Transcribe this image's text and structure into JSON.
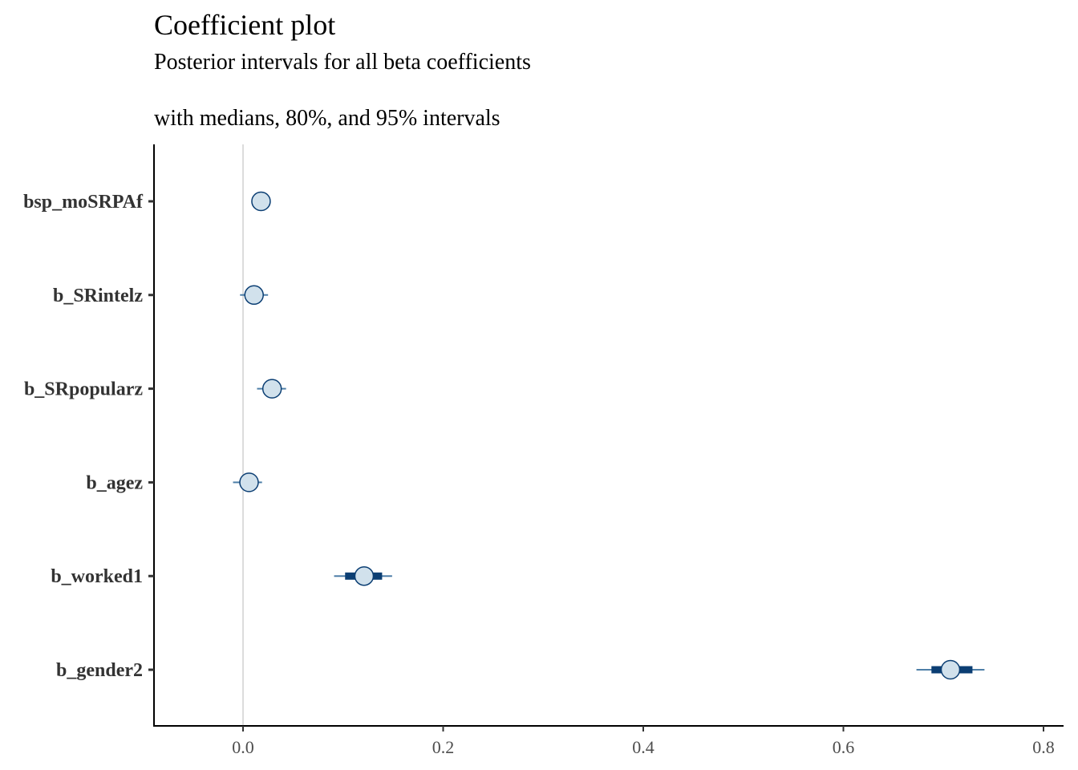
{
  "chart_data": {
    "type": "coefficient-interval",
    "title": "Coefficient plot",
    "subtitle_line1": "Posterior intervals for all beta coefficients",
    "subtitle_line2": "with medians, 80%, and 95% intervals",
    "xlabel": "",
    "ylabel": "",
    "xlim": [
      -0.09,
      0.81
    ],
    "x_ticks": [
      0.0,
      0.2,
      0.4,
      0.6,
      0.8
    ],
    "x_tick_labels": [
      "0.0",
      "0.2",
      "0.4",
      "0.6",
      "0.8"
    ],
    "vline_at": 0.0,
    "grid": false,
    "series": [
      {
        "name": "bsp_moSRPAf",
        "median": 0.018,
        "inner": [
          0.017,
          0.02
        ],
        "outer": [
          0.016,
          0.021
        ]
      },
      {
        "name": "b_SRintelz",
        "median": 0.011,
        "inner": [
          0.004,
          0.018
        ],
        "outer": [
          -0.003,
          0.025
        ]
      },
      {
        "name": "b_SRpopularz",
        "median": 0.029,
        "inner": [
          0.022,
          0.036
        ],
        "outer": [
          0.014,
          0.043
        ]
      },
      {
        "name": "b_agez",
        "median": 0.006,
        "inner": [
          -0.002,
          0.013
        ],
        "outer": [
          -0.01,
          0.019
        ]
      },
      {
        "name": "b_worked1",
        "median": 0.121,
        "inner": [
          0.102,
          0.139
        ],
        "outer": [
          0.091,
          0.149
        ]
      },
      {
        "name": "b_gender2",
        "median": 0.707,
        "inner": [
          0.688,
          0.729
        ],
        "outer": [
          0.673,
          0.741
        ]
      }
    ],
    "colors": {
      "outer_line": "#4e7fa8",
      "inner_bar": "#0b3e73",
      "point_fill": "#d1e1ec",
      "point_stroke": "#0b3e73",
      "zero_line": "#dcdcdc",
      "axis": "#000000"
    }
  }
}
